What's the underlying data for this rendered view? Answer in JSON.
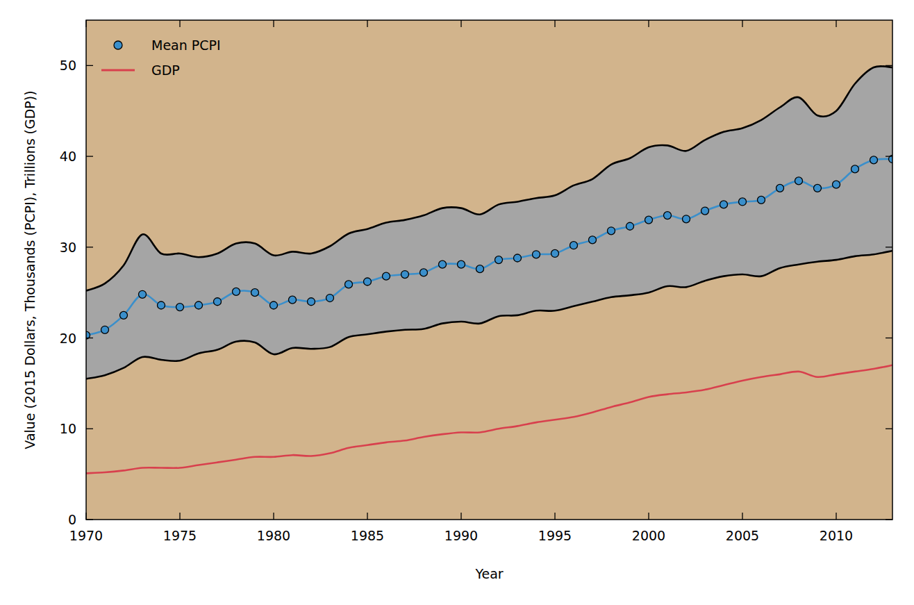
{
  "chart_data": {
    "type": "line",
    "x_label": "Year",
    "y_label": "Value (2015 Dollars, Thousands (PCPI), Trillions (GDP))",
    "x": [
      1970,
      1971,
      1972,
      1973,
      1974,
      1975,
      1976,
      1977,
      1978,
      1979,
      1980,
      1981,
      1982,
      1983,
      1984,
      1985,
      1986,
      1987,
      1988,
      1989,
      1990,
      1991,
      1992,
      1993,
      1994,
      1995,
      1996,
      1997,
      1998,
      1999,
      2000,
      2001,
      2002,
      2003,
      2004,
      2005,
      2006,
      2007,
      2008,
      2009,
      2010,
      2011,
      2012,
      2013
    ],
    "xlim": [
      1970,
      2013
    ],
    "xticks": [
      1970,
      1975,
      1980,
      1985,
      1990,
      1995,
      2000,
      2005,
      2010
    ],
    "ylim": [
      0,
      55
    ],
    "yticks": [
      0,
      10,
      20,
      30,
      40,
      50
    ],
    "grid": false,
    "legend": "upper left",
    "series": [
      {
        "name": "Mean PCPI",
        "color": "#3a8fcb",
        "marker": "circle",
        "line_style": "solid",
        "values": [
          20.3,
          20.9,
          22.5,
          24.8,
          23.6,
          23.4,
          23.6,
          24.0,
          25.1,
          25.0,
          23.6,
          24.2,
          24.0,
          24.4,
          25.9,
          26.2,
          26.8,
          27.0,
          27.2,
          28.1,
          28.1,
          27.6,
          28.6,
          28.8,
          29.2,
          29.3,
          30.2,
          30.8,
          31.8,
          32.3,
          33.0,
          33.5,
          33.1,
          34.0,
          34.7,
          35.0,
          35.2,
          36.5,
          37.3,
          36.5,
          36.9,
          38.6,
          39.6,
          39.7
        ]
      },
      {
        "name": "GDP",
        "color": "#d8404d",
        "marker": "none",
        "line_style": "solid",
        "values": [
          5.1,
          5.2,
          5.4,
          5.7,
          5.7,
          5.7,
          6.0,
          6.3,
          6.6,
          6.9,
          6.9,
          7.1,
          7.0,
          7.3,
          7.9,
          8.2,
          8.5,
          8.7,
          9.1,
          9.4,
          9.6,
          9.6,
          10.0,
          10.3,
          10.7,
          11.0,
          11.3,
          11.8,
          12.4,
          12.9,
          13.5,
          13.8,
          14.0,
          14.3,
          14.8,
          15.3,
          15.7,
          16.0,
          16.3,
          15.7,
          16.0,
          16.3,
          16.6,
          17.0
        ]
      }
    ],
    "band": {
      "color": "#a5a5a5",
      "upper": [
        25.2,
        26.0,
        28.0,
        31.4,
        29.3,
        29.3,
        28.9,
        29.3,
        30.4,
        30.4,
        29.1,
        29.5,
        29.3,
        30.1,
        31.5,
        32.0,
        32.7,
        33.0,
        33.5,
        34.3,
        34.3,
        33.6,
        34.7,
        35.0,
        35.4,
        35.7,
        36.8,
        37.5,
        39.1,
        39.8,
        41.0,
        41.2,
        40.6,
        41.8,
        42.7,
        43.1,
        44.0,
        45.4,
        46.5,
        44.5,
        45.0,
        48.0,
        49.8,
        49.8
      ],
      "lower": [
        15.5,
        15.9,
        16.7,
        17.9,
        17.6,
        17.5,
        18.3,
        18.7,
        19.6,
        19.5,
        18.2,
        18.9,
        18.8,
        19.0,
        20.1,
        20.4,
        20.7,
        20.9,
        21.0,
        21.6,
        21.8,
        21.6,
        22.4,
        22.5,
        23.0,
        23.0,
        23.5,
        24.0,
        24.5,
        24.7,
        25.0,
        25.7,
        25.6,
        26.3,
        26.8,
        27.0,
        26.8,
        27.7,
        28.1,
        28.4,
        28.6,
        29.0,
        29.2,
        29.6
      ]
    }
  }
}
